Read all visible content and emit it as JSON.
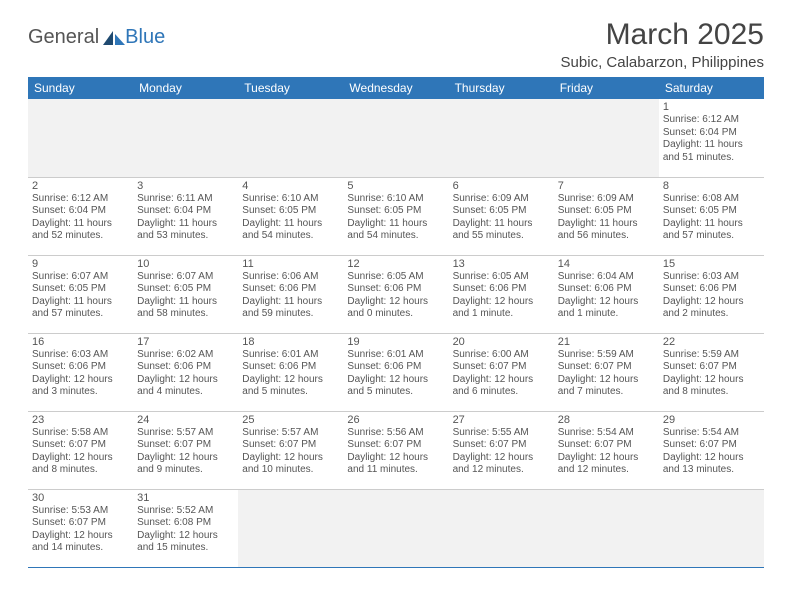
{
  "logo": {
    "text1": "General",
    "text2": "Blue"
  },
  "title": "March 2025",
  "location": "Subic, Calabarzon, Philippines",
  "colors": {
    "accent": "#2f76b8",
    "header_text": "#ffffff",
    "body_text": "#555555",
    "background": "#ffffff",
    "empty_bg": "#f2f2f2",
    "row_divider": "#cccccc"
  },
  "weekdays": [
    "Sunday",
    "Monday",
    "Tuesday",
    "Wednesday",
    "Thursday",
    "Friday",
    "Saturday"
  ],
  "weeks": [
    [
      null,
      null,
      null,
      null,
      null,
      null,
      {
        "d": "1",
        "sunrise": "6:12 AM",
        "sunset": "6:04 PM",
        "daylight": "11 hours and 51 minutes."
      }
    ],
    [
      {
        "d": "2",
        "sunrise": "6:12 AM",
        "sunset": "6:04 PM",
        "daylight": "11 hours and 52 minutes."
      },
      {
        "d": "3",
        "sunrise": "6:11 AM",
        "sunset": "6:04 PM",
        "daylight": "11 hours and 53 minutes."
      },
      {
        "d": "4",
        "sunrise": "6:10 AM",
        "sunset": "6:05 PM",
        "daylight": "11 hours and 54 minutes."
      },
      {
        "d": "5",
        "sunrise": "6:10 AM",
        "sunset": "6:05 PM",
        "daylight": "11 hours and 54 minutes."
      },
      {
        "d": "6",
        "sunrise": "6:09 AM",
        "sunset": "6:05 PM",
        "daylight": "11 hours and 55 minutes."
      },
      {
        "d": "7",
        "sunrise": "6:09 AM",
        "sunset": "6:05 PM",
        "daylight": "11 hours and 56 minutes."
      },
      {
        "d": "8",
        "sunrise": "6:08 AM",
        "sunset": "6:05 PM",
        "daylight": "11 hours and 57 minutes."
      }
    ],
    [
      {
        "d": "9",
        "sunrise": "6:07 AM",
        "sunset": "6:05 PM",
        "daylight": "11 hours and 57 minutes."
      },
      {
        "d": "10",
        "sunrise": "6:07 AM",
        "sunset": "6:05 PM",
        "daylight": "11 hours and 58 minutes."
      },
      {
        "d": "11",
        "sunrise": "6:06 AM",
        "sunset": "6:06 PM",
        "daylight": "11 hours and 59 minutes."
      },
      {
        "d": "12",
        "sunrise": "6:05 AM",
        "sunset": "6:06 PM",
        "daylight": "12 hours and 0 minutes."
      },
      {
        "d": "13",
        "sunrise": "6:05 AM",
        "sunset": "6:06 PM",
        "daylight": "12 hours and 1 minute."
      },
      {
        "d": "14",
        "sunrise": "6:04 AM",
        "sunset": "6:06 PM",
        "daylight": "12 hours and 1 minute."
      },
      {
        "d": "15",
        "sunrise": "6:03 AM",
        "sunset": "6:06 PM",
        "daylight": "12 hours and 2 minutes."
      }
    ],
    [
      {
        "d": "16",
        "sunrise": "6:03 AM",
        "sunset": "6:06 PM",
        "daylight": "12 hours and 3 minutes."
      },
      {
        "d": "17",
        "sunrise": "6:02 AM",
        "sunset": "6:06 PM",
        "daylight": "12 hours and 4 minutes."
      },
      {
        "d": "18",
        "sunrise": "6:01 AM",
        "sunset": "6:06 PM",
        "daylight": "12 hours and 5 minutes."
      },
      {
        "d": "19",
        "sunrise": "6:01 AM",
        "sunset": "6:06 PM",
        "daylight": "12 hours and 5 minutes."
      },
      {
        "d": "20",
        "sunrise": "6:00 AM",
        "sunset": "6:07 PM",
        "daylight": "12 hours and 6 minutes."
      },
      {
        "d": "21",
        "sunrise": "5:59 AM",
        "sunset": "6:07 PM",
        "daylight": "12 hours and 7 minutes."
      },
      {
        "d": "22",
        "sunrise": "5:59 AM",
        "sunset": "6:07 PM",
        "daylight": "12 hours and 8 minutes."
      }
    ],
    [
      {
        "d": "23",
        "sunrise": "5:58 AM",
        "sunset": "6:07 PM",
        "daylight": "12 hours and 8 minutes."
      },
      {
        "d": "24",
        "sunrise": "5:57 AM",
        "sunset": "6:07 PM",
        "daylight": "12 hours and 9 minutes."
      },
      {
        "d": "25",
        "sunrise": "5:57 AM",
        "sunset": "6:07 PM",
        "daylight": "12 hours and 10 minutes."
      },
      {
        "d": "26",
        "sunrise": "5:56 AM",
        "sunset": "6:07 PM",
        "daylight": "12 hours and 11 minutes."
      },
      {
        "d": "27",
        "sunrise": "5:55 AM",
        "sunset": "6:07 PM",
        "daylight": "12 hours and 12 minutes."
      },
      {
        "d": "28",
        "sunrise": "5:54 AM",
        "sunset": "6:07 PM",
        "daylight": "12 hours and 12 minutes."
      },
      {
        "d": "29",
        "sunrise": "5:54 AM",
        "sunset": "6:07 PM",
        "daylight": "12 hours and 13 minutes."
      }
    ],
    [
      {
        "d": "30",
        "sunrise": "5:53 AM",
        "sunset": "6:07 PM",
        "daylight": "12 hours and 14 minutes."
      },
      {
        "d": "31",
        "sunrise": "5:52 AM",
        "sunset": "6:08 PM",
        "daylight": "12 hours and 15 minutes."
      },
      null,
      null,
      null,
      null,
      null
    ]
  ],
  "labels": {
    "sunrise_prefix": "Sunrise: ",
    "sunset_prefix": "Sunset: ",
    "daylight_prefix": "Daylight: "
  }
}
